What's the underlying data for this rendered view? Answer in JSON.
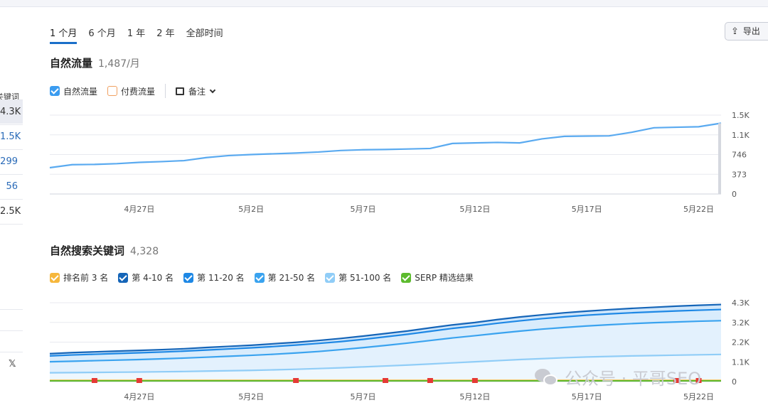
{
  "left_column": {
    "header": "关键词",
    "rows": [
      {
        "value": "4.3K",
        "selected": true,
        "blue": false
      },
      {
        "value": "1.5K",
        "selected": false,
        "blue": true
      },
      {
        "value": "299",
        "selected": false,
        "blue": true
      },
      {
        "value": "56",
        "selected": false,
        "blue": true
      },
      {
        "value": "2.5K",
        "selected": false,
        "blue": false
      }
    ],
    "social_icon": "𝕏"
  },
  "date_ranges": [
    {
      "label": "1 个月",
      "active": true
    },
    {
      "label": "6 个月",
      "active": false
    },
    {
      "label": "1 年",
      "active": false
    },
    {
      "label": "2 年",
      "active": false
    },
    {
      "label": "全部时间",
      "active": false
    }
  ],
  "export_button": {
    "label": "导出",
    "icon": "upload-icon"
  },
  "traffic_section": {
    "title": "自然流量",
    "value": "1,487/月",
    "legend": [
      {
        "label": "自然流量",
        "checked": true,
        "color": "#3b9cf0"
      },
      {
        "label": "付费流量",
        "checked": false,
        "color": "#f0a060"
      }
    ],
    "notes_label": "备注"
  },
  "keywords_section": {
    "title": "自然搜索关键词",
    "value": "4,328",
    "legend": [
      {
        "label": "排名前 3 名",
        "color": "#f6b73c"
      },
      {
        "label": "第 4-10 名",
        "color": "#1565b8"
      },
      {
        "label": "第 11-20 名",
        "color": "#1e88e5"
      },
      {
        "label": "第 21-50 名",
        "color": "#3aa3ef"
      },
      {
        "label": "第 51-100 名",
        "color": "#90cdf7"
      },
      {
        "label": "SERP 精选结果",
        "color": "#5dbb2e"
      }
    ]
  },
  "watermark": "公众号 · 平哥SEO",
  "chart_data": [
    {
      "type": "line",
      "x": [
        "4/23",
        "4/24",
        "4/25",
        "4/26",
        "4/27",
        "4/28",
        "4/29",
        "4/30",
        "5/1",
        "5/2",
        "5/3",
        "5/4",
        "5/5",
        "5/6",
        "5/7",
        "5/8",
        "5/9",
        "5/10",
        "5/11",
        "5/12",
        "5/13",
        "5/14",
        "5/15",
        "5/16",
        "5/17",
        "5/18",
        "5/19",
        "5/20",
        "5/21",
        "5/22",
        "5/23"
      ],
      "xticks": [
        "4月27日",
        "5月2日",
        "5月7日",
        "5月12日",
        "5月17日",
        "5月22日"
      ],
      "yticks": [
        "0",
        "373",
        "746",
        "1.1K",
        "1.5K"
      ],
      "ylim": [
        0,
        1560
      ],
      "series": [
        {
          "name": "自然流量",
          "color": "#5aaaf0",
          "values": [
            520,
            580,
            585,
            600,
            625,
            640,
            660,
            720,
            760,
            780,
            795,
            810,
            830,
            860,
            875,
            880,
            890,
            900,
            1000,
            1010,
            1020,
            1010,
            1090,
            1140,
            1145,
            1150,
            1220,
            1310,
            1320,
            1330,
            1400
          ]
        }
      ]
    },
    {
      "type": "area",
      "x": [
        "4/23",
        "4/24",
        "4/25",
        "4/26",
        "4/27",
        "4/28",
        "4/29",
        "4/30",
        "5/1",
        "5/2",
        "5/3",
        "5/4",
        "5/5",
        "5/6",
        "5/7",
        "5/8",
        "5/9",
        "5/10",
        "5/11",
        "5/12",
        "5/13",
        "5/14",
        "5/15",
        "5/16",
        "5/17",
        "5/18",
        "5/19",
        "5/20",
        "5/21",
        "5/22",
        "5/23"
      ],
      "xticks": [
        "4月27日",
        "5月2日",
        "5月7日",
        "5月12日",
        "5月17日",
        "5月22日"
      ],
      "yticks": [
        "0",
        "1.1K",
        "2.2K",
        "3.2K",
        "4.3K"
      ],
      "ylim": [
        0,
        4300
      ],
      "stacked_cumulative": true,
      "series": [
        {
          "name": "第 4-10 名",
          "color": "#1565b8",
          "values": [
            1520,
            1580,
            1620,
            1660,
            1700,
            1740,
            1790,
            1860,
            1920,
            1980,
            2060,
            2140,
            2240,
            2350,
            2480,
            2620,
            2760,
            2930,
            3090,
            3220,
            3380,
            3520,
            3640,
            3750,
            3840,
            3920,
            3990,
            4050,
            4110,
            4160,
            4200
          ]
        },
        {
          "name": "第 11-20 名",
          "color": "#1e88e5",
          "values": [
            1400,
            1450,
            1490,
            1530,
            1570,
            1610,
            1660,
            1720,
            1780,
            1840,
            1910,
            1990,
            2080,
            2180,
            2300,
            2440,
            2580,
            2740,
            2900,
            3030,
            3180,
            3310,
            3430,
            3530,
            3620,
            3690,
            3750,
            3800,
            3850,
            3890,
            3930
          ]
        },
        {
          "name": "第 21-50 名",
          "color": "#3aa3ef",
          "values": [
            1080,
            1110,
            1140,
            1170,
            1200,
            1240,
            1280,
            1330,
            1380,
            1430,
            1490,
            1560,
            1640,
            1740,
            1850,
            1970,
            2100,
            2240,
            2380,
            2500,
            2630,
            2750,
            2860,
            2950,
            3030,
            3100,
            3160,
            3210,
            3250,
            3290,
            3320
          ]
        },
        {
          "name": "第 51-100 名",
          "color": "#90cdf7",
          "values": [
            480,
            490,
            500,
            510,
            520,
            535,
            550,
            570,
            590,
            610,
            640,
            670,
            710,
            750,
            800,
            850,
            900,
            960,
            1020,
            1080,
            1140,
            1200,
            1250,
            1300,
            1340,
            1370,
            1400,
            1420,
            1440,
            1460,
            1480
          ]
        },
        {
          "name": "排名前 3 名",
          "color": "#f6b73c",
          "values": [
            70,
            70,
            70,
            70,
            70,
            70,
            70,
            70,
            70,
            70,
            70,
            70,
            70,
            70,
            70,
            70,
            70,
            70,
            70,
            70,
            70,
            70,
            70,
            70,
            70,
            70,
            70,
            70,
            70,
            70,
            70
          ]
        },
        {
          "name": "SERP 精选结果",
          "color": "#5dbb2e",
          "values": [
            40,
            40,
            40,
            40,
            40,
            40,
            40,
            40,
            40,
            40,
            40,
            40,
            40,
            40,
            40,
            40,
            40,
            40,
            40,
            40,
            40,
            40,
            40,
            40,
            40,
            40,
            40,
            40,
            40,
            40,
            40
          ]
        }
      ],
      "markers": [
        "4/25",
        "4/27",
        "5/4",
        "5/8",
        "5/10",
        "5/12",
        "5/21",
        "5/22"
      ]
    }
  ]
}
